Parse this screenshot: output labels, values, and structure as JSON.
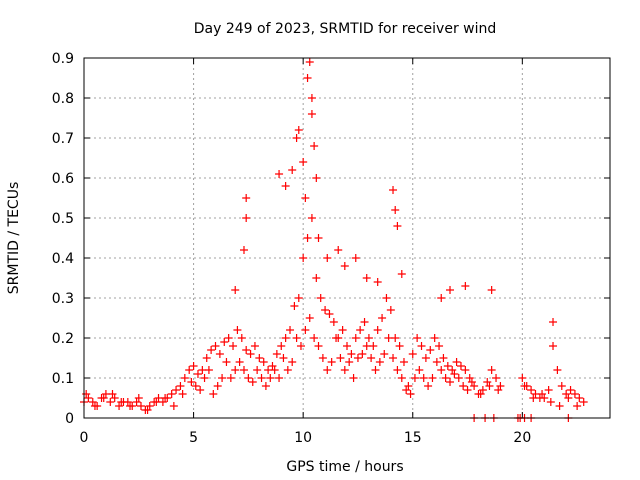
{
  "chart_data": {
    "type": "scatter",
    "title": "Day 249 of 2023, SRMTID for receiver wind",
    "xlabel": "GPS time / hours",
    "ylabel": "SRMTID / TECUs",
    "xlim": [
      0,
      24
    ],
    "ylim": [
      0,
      0.9
    ],
    "xticks": [
      0,
      5,
      10,
      15,
      20
    ],
    "yticks": [
      0,
      0.1,
      0.2,
      0.3,
      0.4,
      0.5,
      0.6,
      0.7,
      0.8,
      0.9
    ],
    "grid": true,
    "marker": "+",
    "color": "#ff0000",
    "series": [
      {
        "name": "SRMTID",
        "x": [
          0.0,
          0.2,
          0.4,
          0.6,
          0.8,
          1.0,
          1.2,
          1.4,
          1.6,
          1.8,
          2.0,
          2.2,
          2.4,
          2.6,
          2.8,
          3.0,
          3.2,
          3.4,
          3.6,
          3.8,
          4.0,
          4.2,
          4.4,
          4.6,
          4.8,
          5.0,
          5.2,
          5.4,
          5.6,
          5.8,
          6.0,
          6.2,
          6.4,
          6.6,
          6.8,
          7.0,
          7.2,
          7.4,
          7.6,
          7.8,
          8.0,
          8.2,
          8.4,
          8.6,
          8.8,
          9.0,
          9.2,
          9.4,
          9.6,
          9.8,
          10.0,
          10.2,
          10.4,
          10.6,
          10.8,
          11.0,
          11.2,
          11.4,
          11.6,
          11.8,
          12.0,
          12.2,
          12.4,
          12.6,
          12.8,
          13.0,
          13.2,
          13.4,
          13.6,
          13.8,
          14.0,
          14.2,
          14.4,
          14.6,
          14.8,
          15.0,
          15.2,
          15.4,
          15.6,
          15.8,
          16.0,
          16.2,
          16.4,
          16.6,
          16.8,
          17.0,
          17.2,
          17.4,
          17.6,
          17.8,
          18.0,
          18.2,
          18.4,
          18.6,
          18.8,
          19.0,
          20.0,
          20.2,
          20.4,
          20.6,
          20.8,
          21.0,
          21.2,
          21.4,
          21.6,
          21.8,
          22.0,
          22.2,
          22.4,
          22.6,
          22.8,
          0.1,
          0.5,
          0.9,
          1.3,
          1.7,
          2.1,
          2.5,
          2.9,
          3.3,
          3.7,
          4.1,
          4.5,
          4.9,
          5.1,
          5.3,
          5.5,
          5.7,
          5.9,
          6.1,
          6.3,
          6.5,
          6.7,
          6.9,
          7.1,
          7.3,
          7.5,
          7.7,
          7.9,
          8.1,
          8.3,
          8.5,
          8.7,
          8.9,
          9.1,
          9.3,
          9.5,
          9.7,
          9.9,
          10.1,
          10.3,
          10.5,
          10.7,
          10.9,
          11.1,
          11.3,
          11.5,
          11.7,
          11.9,
          12.1,
          12.3,
          12.5,
          12.7,
          12.9,
          13.1,
          13.3,
          13.5,
          13.7,
          13.9,
          14.1,
          14.3,
          14.5,
          14.7,
          14.9,
          15.1,
          15.3,
          15.5,
          15.7,
          15.9,
          16.1,
          16.3,
          16.5,
          16.7,
          16.9,
          17.1,
          17.3,
          17.5,
          17.7,
          18.1,
          18.5,
          18.9,
          20.1,
          20.5,
          20.9,
          21.3,
          21.7,
          22.1,
          22.5,
          6.9,
          7.3,
          7.4,
          7.4,
          8.9,
          9.2,
          9.5,
          9.7,
          9.8,
          10.0,
          10.1,
          10.2,
          10.3,
          10.4,
          10.4,
          10.5,
          10.6,
          10.7,
          11.1,
          11.6,
          11.9,
          12.4,
          12.9,
          13.4,
          14.1,
          14.2,
          14.3,
          14.5,
          16.3,
          16.7,
          17.4,
          18.6,
          21.4,
          17.8,
          18.3,
          18.7,
          19.8,
          19.9,
          20.1,
          20.4,
          22.1
        ],
        "y": [
          0.04,
          0.05,
          0.04,
          0.03,
          0.05,
          0.06,
          0.04,
          0.05,
          0.03,
          0.04,
          0.04,
          0.03,
          0.04,
          0.03,
          0.02,
          0.03,
          0.04,
          0.05,
          0.04,
          0.05,
          0.06,
          0.07,
          0.08,
          0.1,
          0.12,
          0.13,
          0.11,
          0.12,
          0.15,
          0.17,
          0.18,
          0.16,
          0.19,
          0.2,
          0.18,
          0.22,
          0.2,
          0.17,
          0.16,
          0.18,
          0.15,
          0.14,
          0.12,
          0.13,
          0.16,
          0.18,
          0.2,
          0.22,
          0.28,
          0.3,
          0.4,
          0.45,
          0.5,
          0.35,
          0.3,
          0.27,
          0.26,
          0.24,
          0.2,
          0.22,
          0.18,
          0.16,
          0.2,
          0.22,
          0.24,
          0.2,
          0.18,
          0.22,
          0.25,
          0.3,
          0.27,
          0.2,
          0.18,
          0.14,
          0.08,
          0.16,
          0.2,
          0.18,
          0.15,
          0.17,
          0.2,
          0.18,
          0.15,
          0.13,
          0.12,
          0.14,
          0.13,
          0.12,
          0.1,
          0.08,
          0.06,
          0.07,
          0.09,
          0.12,
          0.1,
          0.08,
          0.1,
          0.08,
          0.07,
          0.06,
          0.05,
          0.05,
          0.07,
          0.18,
          0.12,
          0.08,
          0.06,
          0.07,
          0.06,
          0.05,
          0.04,
          0.06,
          0.03,
          0.05,
          0.06,
          0.04,
          0.03,
          0.05,
          0.02,
          0.04,
          0.05,
          0.03,
          0.06,
          0.09,
          0.08,
          0.07,
          0.1,
          0.12,
          0.06,
          0.08,
          0.1,
          0.14,
          0.1,
          0.12,
          0.14,
          0.12,
          0.1,
          0.09,
          0.12,
          0.1,
          0.08,
          0.1,
          0.12,
          0.1,
          0.15,
          0.12,
          0.14,
          0.2,
          0.18,
          0.22,
          0.25,
          0.2,
          0.18,
          0.15,
          0.12,
          0.14,
          0.2,
          0.15,
          0.12,
          0.14,
          0.1,
          0.15,
          0.16,
          0.18,
          0.15,
          0.12,
          0.14,
          0.16,
          0.2,
          0.15,
          0.12,
          0.1,
          0.07,
          0.06,
          0.1,
          0.12,
          0.1,
          0.08,
          0.1,
          0.14,
          0.12,
          0.1,
          0.09,
          0.11,
          0.1,
          0.08,
          0.07,
          0.09,
          0.06,
          0.08,
          0.07,
          0.08,
          0.05,
          0.06,
          0.04,
          0.03,
          0.05,
          0.03,
          0.32,
          0.42,
          0.55,
          0.5,
          0.61,
          0.58,
          0.62,
          0.7,
          0.72,
          0.64,
          0.55,
          0.85,
          0.89,
          0.8,
          0.76,
          0.68,
          0.6,
          0.45,
          0.4,
          0.42,
          0.38,
          0.4,
          0.35,
          0.34,
          0.57,
          0.52,
          0.48,
          0.36,
          0.3,
          0.32,
          0.33,
          0.32,
          0.24,
          0.0,
          0.0,
          0.0,
          0.0,
          0.0,
          0.0,
          0.0,
          0.0
        ]
      }
    ]
  }
}
